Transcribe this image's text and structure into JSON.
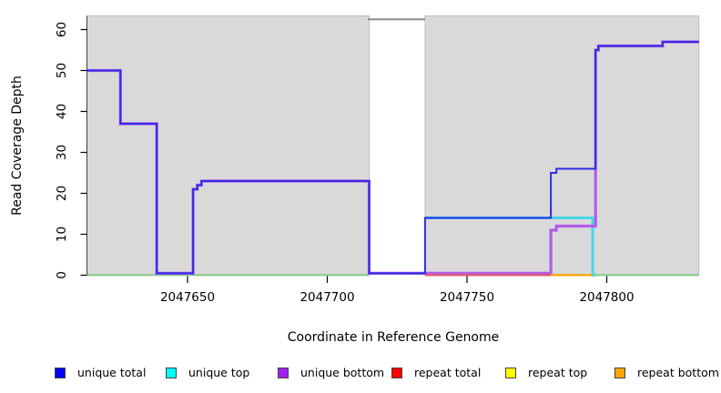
{
  "chart_data": {
    "type": "line",
    "subtype": "step-coverage",
    "title": "",
    "xlabel": "Coordinate in Reference Genome",
    "ylabel": "Read Coverage Depth",
    "xlim": [
      2047614,
      2047833
    ],
    "ylim": [
      0,
      63.3
    ],
    "x_ticks": [
      2047650,
      2047700,
      2047750,
      2047800
    ],
    "y_ticks": [
      0,
      10,
      20,
      30,
      40,
      50,
      60
    ],
    "grid": false,
    "legend_position": "bottom",
    "region_fill": "#D9D9D9",
    "region_border": "#BFBFBF",
    "axis_color": "#404040",
    "background_regions": [
      {
        "x0": 2047614,
        "x1": 2047715
      },
      {
        "x0": 2047735,
        "x1": 2047833
      }
    ],
    "gap_region": {
      "x0": 2047715,
      "x1": 2047735,
      "clip_line_value": 62.5,
      "clip_line_color": "#8C8C8C"
    },
    "zero_line": {
      "color": "#86C886",
      "segments": [
        [
          2047614,
          2047715
        ],
        [
          2047735,
          2047833
        ]
      ]
    },
    "series": [
      {
        "name": "unique total",
        "color": "#0000FF",
        "line_color": "#2E2EE4",
        "points": [
          [
            2047614,
            50
          ],
          [
            2047626,
            37
          ],
          [
            2047639,
            0
          ],
          [
            2047652,
            21
          ],
          [
            2047653.5,
            22
          ],
          [
            2047655,
            23
          ],
          [
            2047715,
            0
          ],
          [
            2047735,
            14
          ],
          [
            2047780,
            25
          ],
          [
            2047782,
            26
          ],
          [
            2047796,
            55
          ],
          [
            2047797,
            56
          ],
          [
            2047820,
            57
          ],
          [
            2047833,
            57
          ]
        ]
      },
      {
        "name": "unique top",
        "color": "#00FFFF",
        "line_color": "#48D8E8",
        "points": [
          [
            2047735,
            14
          ],
          [
            2047795,
            0
          ],
          [
            2047796,
            0
          ]
        ]
      },
      {
        "name": "unique bottom",
        "color": "#A020F0",
        "line_color": "#B55CE8",
        "points": [
          [
            2047614,
            50
          ],
          [
            2047626,
            37
          ],
          [
            2047639,
            0
          ],
          [
            2047652,
            21
          ],
          [
            2047653.5,
            22
          ],
          [
            2047655,
            23
          ],
          [
            2047715,
            0
          ],
          [
            2047780,
            11
          ],
          [
            2047782,
            12
          ],
          [
            2047796,
            55
          ],
          [
            2047797,
            56
          ],
          [
            2047820,
            57
          ],
          [
            2047833,
            57
          ]
        ]
      },
      {
        "name": "repeat total",
        "color": "#FF0000",
        "line_color": "#E05A6E",
        "points": [
          [
            2047735,
            0
          ],
          [
            2047780,
            0
          ]
        ]
      },
      {
        "name": "repeat top",
        "color": "#FFFF00",
        "line_color": "#FFFF00",
        "points": []
      },
      {
        "name": "repeat bottom",
        "color": "#FFA500",
        "line_color": "#FFA500",
        "points": [
          [
            2047780,
            0
          ],
          [
            2047795,
            0
          ]
        ]
      }
    ]
  },
  "legend": {
    "items": [
      {
        "label": "unique total",
        "color": "#0000FF"
      },
      {
        "label": "unique top",
        "color": "#00FFFF"
      },
      {
        "label": "unique bottom",
        "color": "#A020F0"
      },
      {
        "label": "repeat total",
        "color": "#FF0000"
      },
      {
        "label": "repeat top",
        "color": "#FFFF00"
      },
      {
        "label": "repeat bottom",
        "color": "#FFA500"
      }
    ]
  }
}
